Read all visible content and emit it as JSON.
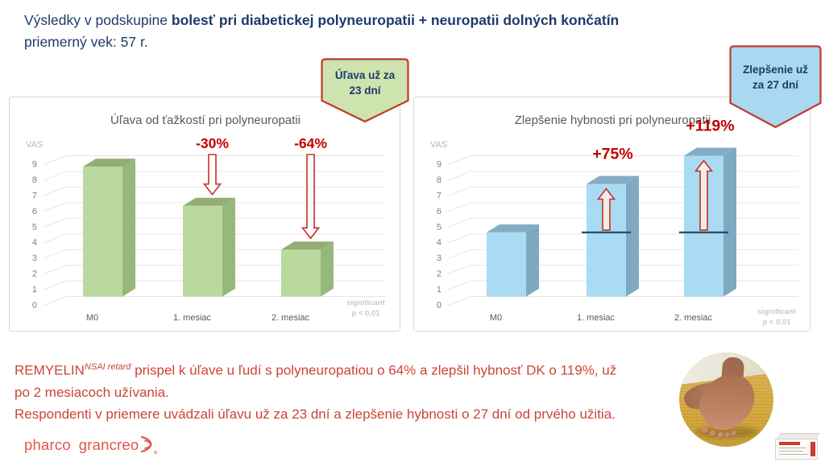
{
  "header": {
    "line1_normal": "Výsledky v podskupine ",
    "line1_bold": "bolesť pri diabetickej polyneuropatii + neuropatii dolných končatín",
    "line2": "priemerný vek: 57 r."
  },
  "callouts": {
    "relief": {
      "lines": [
        "Úľava už za",
        "23 dní"
      ],
      "fill": "#cde4af",
      "border": "#c0392b",
      "text_color": "#1e3a6b"
    },
    "mobility": {
      "lines": [
        "Zlepšenie už",
        "za 27 dní"
      ],
      "fill": "#a9d8f1",
      "border": "#c0392b",
      "text_color": "#1e3a6b"
    }
  },
  "chart_data": [
    {
      "type": "bar",
      "style": "3d",
      "title": "Úľava od ťažkostí pri polyneuropatii",
      "ylabel": "VAS",
      "xlabel": "",
      "categories": [
        "M0",
        "1. mesiac",
        "2. mesiac"
      ],
      "values": [
        8.3,
        5.8,
        3.0
      ],
      "ylim": [
        0,
        9
      ],
      "yticks": [
        "0",
        "1",
        "2",
        "3",
        "4",
        "5",
        "6",
        "7",
        "8",
        "9"
      ],
      "grid": true,
      "legend": "none",
      "annotations": [
        {
          "index": 1,
          "label": "-30%",
          "direction": "down"
        },
        {
          "index": 2,
          "label": "-64%",
          "direction": "down"
        }
      ],
      "note": [
        "significant",
        "p < 0,01"
      ],
      "bar_colors": {
        "front": "#bad99e",
        "top": "#93ae75",
        "side": "#97b87b"
      }
    },
    {
      "type": "bar",
      "style": "3d",
      "title": "Zlepšenie hybnosti pri polyneuropatii",
      "ylabel": "VAS",
      "xlabel": "",
      "categories": [
        "M0",
        "1. mesiac",
        "2. mesiac"
      ],
      "values": [
        4.1,
        7.2,
        9.0
      ],
      "ylim": [
        0,
        9
      ],
      "yticks": [
        "0",
        "1",
        "2",
        "3",
        "4",
        "5",
        "6",
        "7",
        "8",
        "9"
      ],
      "grid": true,
      "legend": "none",
      "baseline": {
        "value": 4.1,
        "categories": [
          1,
          2
        ],
        "color": "#27466e"
      },
      "annotations": [
        {
          "index": 1,
          "label": "+75%",
          "direction": "up"
        },
        {
          "index": 2,
          "label": "+119%",
          "direction": "up"
        }
      ],
      "note": [
        "significant",
        "p < 0,01"
      ],
      "bar_colors": {
        "front": "#a9dbf3",
        "top": "#84adc3",
        "side": "#7ea9c1"
      }
    }
  ],
  "footer": {
    "brand": "REMYELIN",
    "brand_sup": "NSAI retard",
    "line1_rest": " prispel k úľave u ľudí s polyneuropatiou o 64% a zlepšil hybnosť DK o 119%, už",
    "line2": "po 2 mesiacoch užívania.",
    "line3": "Respondenti v priemere uvádzali úľavu už za 23 dní a zlepšenie hybnosti o 27 dní od prvého užitia."
  },
  "logo": {
    "word1": "pharco",
    "word2": "grancreo"
  },
  "colors": {
    "header_navy": "#1e3a6b",
    "annotation_red": "#c00000",
    "arrow_red": "#c33224",
    "footer_red": "#cc4437",
    "logo_red": "#e2544a",
    "chart_title_gray": "#595959",
    "tick_gray": "#7f7f7f",
    "note_gray": "#c9c9c9",
    "grid_gray": "#e5e5e5"
  }
}
